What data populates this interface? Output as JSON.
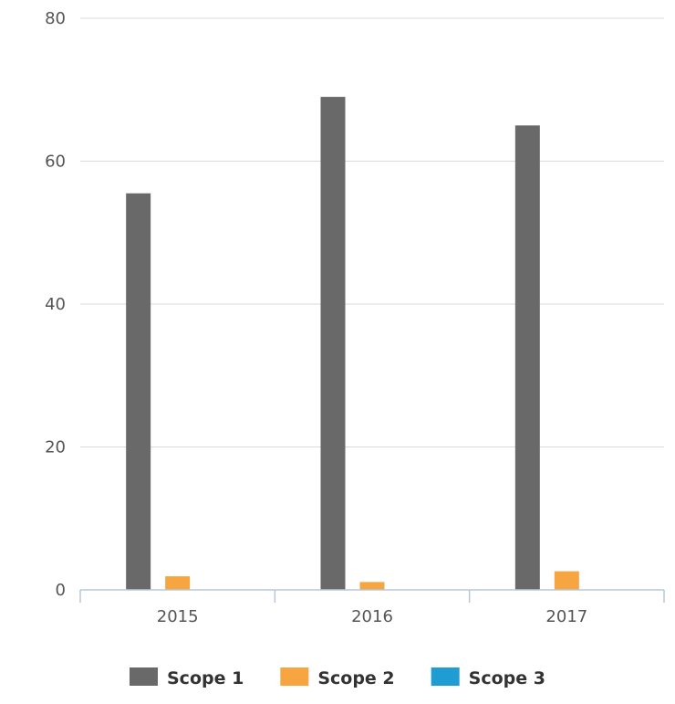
{
  "chart_data": {
    "type": "bar",
    "title": "",
    "xlabel": "",
    "ylabel": "",
    "categories": [
      "2015",
      "2016",
      "2017"
    ],
    "series": [
      {
        "name": "Scope 1",
        "color": "#696969",
        "values": [
          55.5,
          69,
          65
        ]
      },
      {
        "name": "Scope 2",
        "color": "#F7A540",
        "values": [
          1.9,
          1.1,
          2.6
        ]
      },
      {
        "name": "Scope 3",
        "color": "#1F9CD1",
        "values": [
          0,
          0,
          0
        ]
      }
    ],
    "ylim": [
      0,
      80
    ],
    "yticks": [
      "0",
      "20",
      "40",
      "60",
      "80"
    ],
    "grid": true,
    "legend_position": "bottom"
  }
}
